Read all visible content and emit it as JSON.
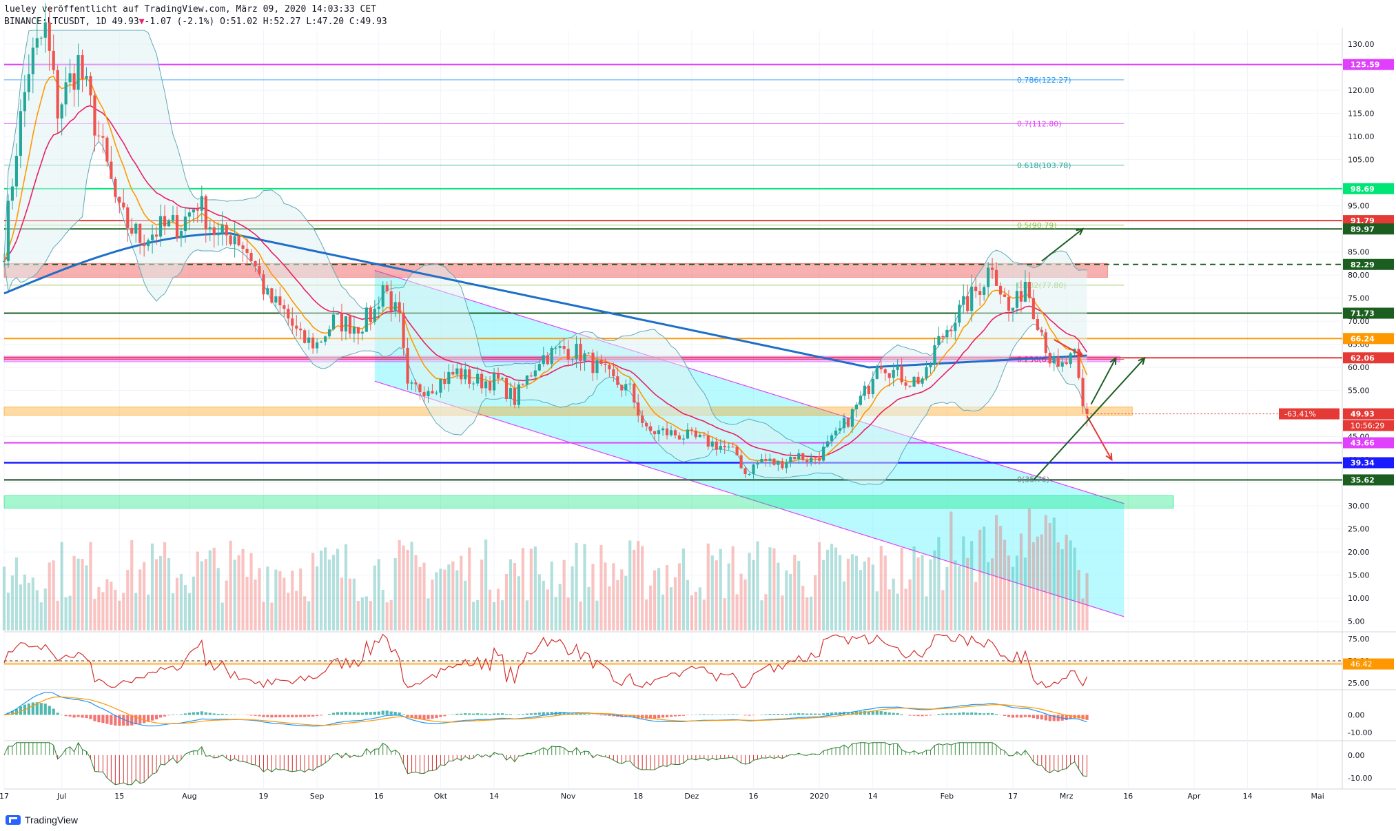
{
  "header": {
    "line1": "lueley veröffentlicht auf TradingView.com, März 09, 2020 14:03:33 CET",
    "symbol": "BINANCE:LTCUSDT, 1D",
    "last": "49.93",
    "change": "-1.07 (-2.1%)",
    "ohlc": "O:51.02 H:52.27 L:47.20 C:49.93"
  },
  "brand": "TradingView",
  "colors": {
    "up": "#26a69a",
    "down": "#ef5350",
    "ma200": "#1e6fc9",
    "ema_red": "#e91e63",
    "ema_orange": "#ff9800",
    "bb": "#5fa8b8",
    "channel": "#e040fb",
    "channel_fill": "#7ff5ff"
  },
  "chart_data": {
    "type": "candlestick",
    "price_axis": {
      "ylim": [
        3,
        133
      ],
      "ticks": [
        130,
        125,
        120,
        115,
        110,
        105,
        95,
        90,
        85,
        80,
        75,
        70,
        65,
        60,
        55,
        50,
        45,
        40,
        35,
        30,
        25,
        20,
        15,
        10,
        5
      ]
    },
    "x_tick_labels": [
      {
        "label": "17",
        "day": 0
      },
      {
        "label": "Jul",
        "day": 14
      },
      {
        "label": "15",
        "day": 28
      },
      {
        "label": "Aug",
        "day": 45
      },
      {
        "label": "19",
        "day": 63
      },
      {
        "label": "Sep",
        "day": 76
      },
      {
        "label": "16",
        "day": 91
      },
      {
        "label": "Okt",
        "day": 106
      },
      {
        "label": "14",
        "day": 119
      },
      {
        "label": "Nov",
        "day": 137
      },
      {
        "label": "18",
        "day": 154
      },
      {
        "label": "Dez",
        "day": 167
      },
      {
        "label": "16",
        "day": 182
      },
      {
        "label": "2020",
        "day": 198
      },
      {
        "label": "14",
        "day": 211
      },
      {
        "label": "Feb",
        "day": 229
      },
      {
        "label": "17",
        "day": 245
      },
      {
        "label": "Mrz",
        "day": 258
      },
      {
        "label": "16",
        "day": 273
      },
      {
        "label": "Apr",
        "day": 289
      },
      {
        "label": "14",
        "day": 302
      },
      {
        "label": "Mai",
        "day": 319
      }
    ],
    "candle_path": [
      [
        0,
        86
      ],
      [
        3,
        108
      ],
      [
        6,
        125
      ],
      [
        10,
        133
      ],
      [
        13,
        116
      ],
      [
        18,
        126
      ],
      [
        23,
        110
      ],
      [
        28,
        93
      ],
      [
        33,
        88
      ],
      [
        38,
        90
      ],
      [
        43,
        91
      ],
      [
        47,
        96
      ],
      [
        52,
        88
      ],
      [
        56,
        89
      ],
      [
        60,
        84
      ],
      [
        64,
        75
      ],
      [
        68,
        72
      ],
      [
        72,
        66
      ],
      [
        76,
        65
      ],
      [
        80,
        70
      ],
      [
        86,
        69
      ],
      [
        90,
        72
      ],
      [
        92,
        78
      ],
      [
        96,
        70
      ],
      [
        98,
        55
      ],
      [
        104,
        56
      ],
      [
        110,
        59
      ],
      [
        114,
        57
      ],
      [
        120,
        57
      ],
      [
        124,
        53
      ],
      [
        130,
        62
      ],
      [
        136,
        64
      ],
      [
        140,
        63
      ],
      [
        144,
        60
      ],
      [
        148,
        57
      ],
      [
        152,
        55
      ],
      [
        156,
        46
      ],
      [
        160,
        46
      ],
      [
        166,
        45
      ],
      [
        170,
        44
      ],
      [
        174,
        43
      ],
      [
        178,
        41
      ],
      [
        180,
        37
      ],
      [
        184,
        40
      ],
      [
        188,
        39
      ],
      [
        192,
        41
      ],
      [
        196,
        40
      ],
      [
        198,
        41
      ],
      [
        202,
        45
      ],
      [
        206,
        50
      ],
      [
        210,
        56
      ],
      [
        212,
        62
      ],
      [
        216,
        59
      ],
      [
        220,
        57
      ],
      [
        224,
        58
      ],
      [
        226,
        64
      ],
      [
        230,
        70
      ],
      [
        234,
        74
      ],
      [
        238,
        79
      ],
      [
        240,
        83
      ],
      [
        242,
        77
      ],
      [
        244,
        72
      ],
      [
        246,
        74
      ],
      [
        248,
        79
      ],
      [
        250,
        73
      ],
      [
        252,
        68
      ],
      [
        254,
        62
      ],
      [
        256,
        59
      ],
      [
        258,
        61
      ],
      [
        260,
        62
      ],
      [
        262,
        51
      ],
      [
        263,
        49.93
      ]
    ],
    "price_labels": [
      {
        "label": "125.59",
        "value": 125.59,
        "color": "#e040fb"
      },
      {
        "label": "98.69",
        "value": 98.69,
        "color": "#00e676"
      },
      {
        "label": "91.79",
        "value": 91.79,
        "color": "#e53935"
      },
      {
        "label": "89.97",
        "value": 89.97,
        "color": "#1b5e20"
      },
      {
        "label": "82.29",
        "value": 82.29,
        "color": "#1b5e20"
      },
      {
        "label": "71.73",
        "value": 71.73,
        "color": "#1b5e20"
      },
      {
        "label": "66.24",
        "value": 66.24,
        "color": "#ff9800"
      },
      {
        "label": "62.06",
        "value": 62.06,
        "color": "#e53935"
      },
      {
        "label": "49.93",
        "value": 49.93,
        "color": "#e53935"
      },
      {
        "label": "43.66",
        "value": 43.66,
        "color": "#e040fb"
      },
      {
        "label": "39.34",
        "value": 39.34,
        "color": "#1a1aff"
      },
      {
        "label": "35.62",
        "value": 35.62,
        "color": "#1b5e20"
      }
    ],
    "current_price_tag": {
      "change_label": "-63.41%",
      "countdown": "10:56:29"
    },
    "horizontal_levels": [
      {
        "value": 125.59,
        "color": "#e040fb"
      },
      {
        "value": 98.69,
        "color": "#00e676"
      },
      {
        "value": 91.79,
        "color": "#e53935"
      },
      {
        "value": 89.97,
        "color": "#1b5e20"
      },
      {
        "value": 82.29,
        "color": "#1b5e20",
        "dashed": true
      },
      {
        "value": 71.73,
        "color": "#1b5e20"
      },
      {
        "value": 66.24,
        "color": "#ff9800"
      },
      {
        "value": 62.06,
        "color": "#e53935"
      },
      {
        "value": 43.66,
        "color": "#e040fb"
      },
      {
        "value": 39.34,
        "color": "#1a1aff"
      },
      {
        "value": 35.62,
        "color": "#1b5e20"
      }
    ],
    "zones": [
      {
        "from": 79.5,
        "to": 82.5,
        "color": "#ef5350"
      },
      {
        "from": 61.2,
        "to": 62.4,
        "color": "#e040fb"
      },
      {
        "from": 49.6,
        "to": 51.4,
        "color": "#ff9800"
      },
      {
        "from": 29.5,
        "to": 32.2,
        "color": "#00e676"
      }
    ],
    "fibonacci": [
      {
        "label": "0.786(122.27)",
        "value": 122.27,
        "color": "#2196f3"
      },
      {
        "label": "0.7(112.80)",
        "value": 112.8,
        "color": "#e040fb"
      },
      {
        "label": "0.618(103.78)",
        "value": 103.78,
        "color": "#26a69a"
      },
      {
        "label": "0.5(90.79)",
        "value": 90.79,
        "color": "#8bc34a"
      },
      {
        "label": "0.382(77.80)",
        "value": 77.8,
        "color": "#8bc34a"
      },
      {
        "label": "0.236(61.73)",
        "value": 61.73,
        "color": "#e91e63"
      },
      {
        "label": "0(35.76)",
        "value": 35.76,
        "color": "#787b86"
      }
    ],
    "channel": {
      "upper": [
        [
          90,
          81
        ],
        [
          272,
          30.5
        ]
      ],
      "lower": [
        [
          90,
          57
        ],
        [
          272,
          6
        ]
      ]
    },
    "rsi": {
      "ylim": [
        18,
        82
      ],
      "ticks": [
        75,
        50,
        25
      ],
      "last_label": "46.42",
      "levels": [
        46.42,
        50
      ]
    },
    "macd": {
      "ylim": [
        -14,
        14
      ],
      "ticks": [
        0,
        -10
      ]
    },
    "histogram": {
      "ylim": [
        -14,
        6
      ],
      "ticks": [
        0,
        -10
      ]
    }
  }
}
